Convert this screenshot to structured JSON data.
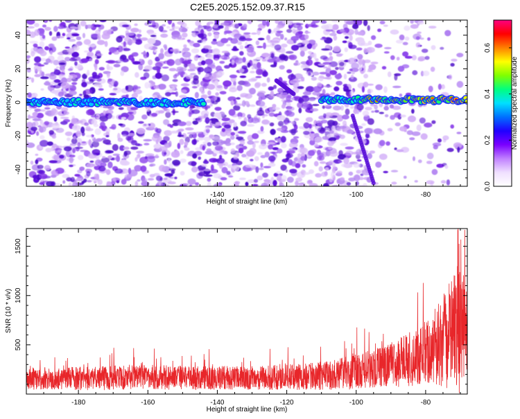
{
  "page_title": "C2E5.2025.152.09.37.R15",
  "colors": {
    "snr_line": "#e8262a",
    "ridge_center": "#e8262a",
    "ridge_mid": "#2fd16a",
    "ridge_edge": "#1a2cff",
    "noise_dark": "#5a10d8",
    "noise_light": "#cfa8f7"
  },
  "chart_data": [
    {
      "type": "heatmap",
      "xlabel": "Height of straight line (km)",
      "ylabel": "Frequency (Hz)",
      "xlim": [
        -195,
        -68
      ],
      "ylim": [
        -50,
        49
      ],
      "xticks": [
        -180,
        -160,
        -140,
        -120,
        -100,
        -80
      ],
      "yticks": [
        -40,
        -20,
        0,
        20,
        40
      ],
      "grid": false,
      "colorbar": {
        "label": "Normalized spectral amplitude",
        "range": [
          0.0,
          0.72
        ],
        "ticks": [
          0.0,
          0.2,
          0.4,
          0.6
        ],
        "colormap": [
          "#ffffff",
          "#f0e0ff",
          "#c080ff",
          "#7a00ff",
          "#2000ff",
          "#0070ff",
          "#00e0ff",
          "#00ff80",
          "#80ff00",
          "#ffff00",
          "#ff8000",
          "#ff0000",
          "#ff0080"
        ]
      },
      "ridge": {
        "segments": [
          {
            "x_start": -195,
            "x_end": -144,
            "frequency": 0,
            "amplitude": 0.25
          },
          {
            "x_start": -110,
            "x_end": -68,
            "frequency": 1.5,
            "amplitude_start": 0.3,
            "amplitude_end": 0.65
          }
        ]
      },
      "features": [
        {
          "from": [
            -101,
            -8
          ],
          "to": [
            -95,
            -48
          ],
          "amplitude": 0.15
        },
        {
          "from": [
            -123,
            13
          ],
          "to": [
            -118,
            5
          ],
          "amplitude": 0.12
        }
      ]
    },
    {
      "type": "line",
      "xlabel": "Height of straight line (km)",
      "ylabel": "SNR (10 * v/v)",
      "xlim": [
        -195,
        -68
      ],
      "ylim": [
        0,
        1680
      ],
      "xticks": [
        -180,
        -160,
        -140,
        -120,
        -100,
        -80
      ],
      "yticks": [
        500,
        1000,
        1500
      ],
      "grid": false,
      "series": [
        {
          "x": [
            -195,
            -190,
            -185,
            -180,
            -175,
            -170,
            -165,
            -160,
            -155,
            -150,
            -145,
            -140,
            -135,
            -130,
            -125,
            -120,
            -115,
            -110,
            -105,
            -100,
            -95,
            -90,
            -87,
            -84,
            -82,
            -80,
            -78,
            -76,
            -74,
            -72,
            -71,
            -70,
            -69,
            -68
          ],
          "mean": [
            150,
            150,
            155,
            160,
            160,
            165,
            170,
            175,
            170,
            165,
            165,
            165,
            165,
            165,
            165,
            170,
            175,
            185,
            200,
            230,
            260,
            300,
            330,
            360,
            400,
            420,
            460,
            500,
            560,
            650,
            700,
            600,
            700,
            620
          ],
          "spread": [
            110,
            110,
            115,
            120,
            120,
            125,
            130,
            130,
            125,
            120,
            120,
            120,
            120,
            120,
            125,
            130,
            135,
            145,
            160,
            180,
            200,
            230,
            260,
            280,
            300,
            320,
            380,
            450,
            520,
            600,
            650,
            650,
            520,
            450
          ]
        }
      ]
    }
  ]
}
